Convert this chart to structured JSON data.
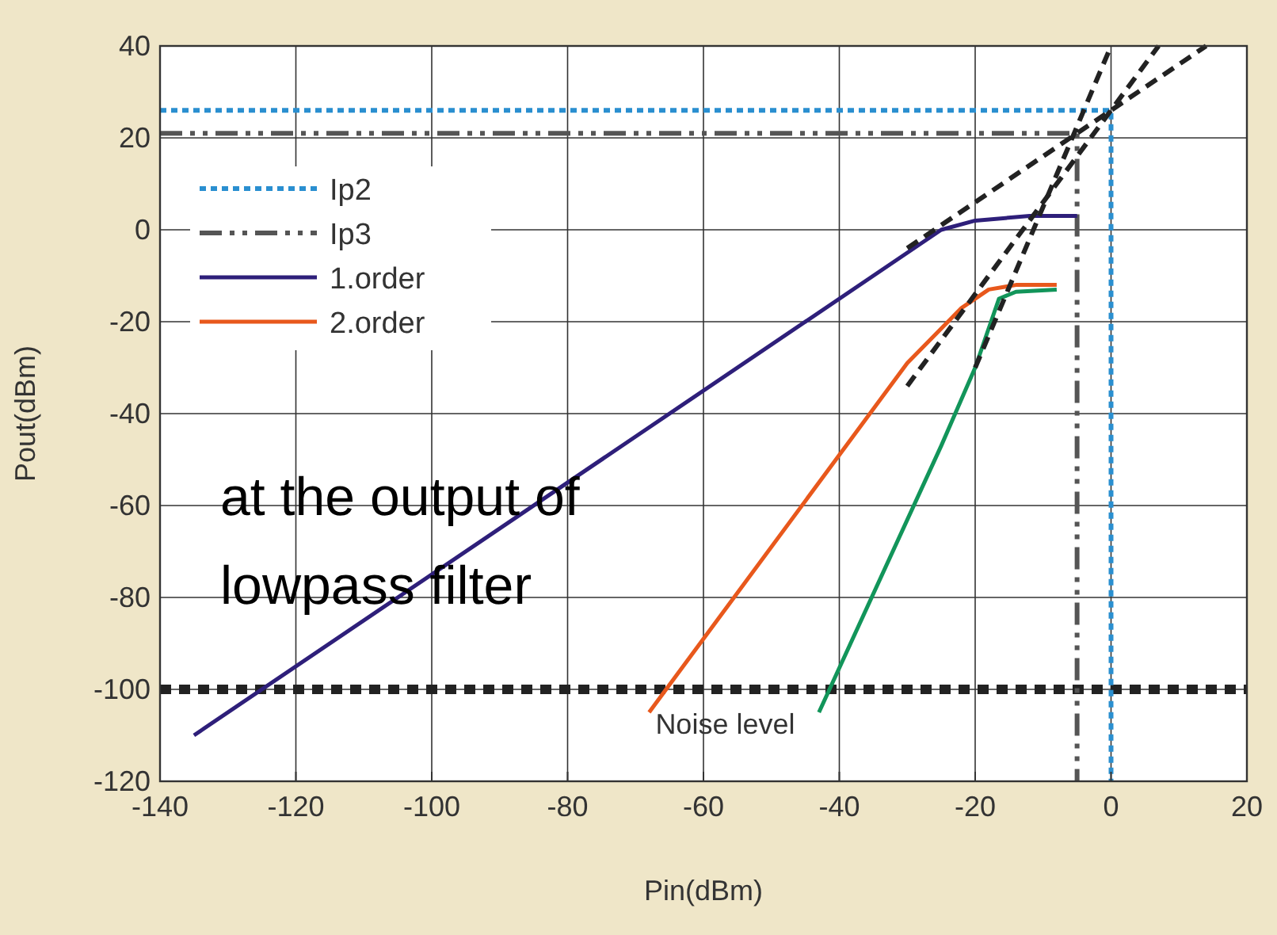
{
  "chart_data": {
    "type": "line",
    "xlabel": "Pin(dBm)",
    "ylabel": "Pout(dBm)",
    "xlim": [
      -140,
      20
    ],
    "ylim": [
      -120,
      40
    ],
    "xticks": [
      -140,
      -120,
      -100,
      -80,
      -60,
      -40,
      -20,
      0,
      20
    ],
    "yticks": [
      -120,
      -100,
      -80,
      -60,
      -40,
      -20,
      0,
      20,
      40
    ],
    "grid": true,
    "legend": "top left",
    "series": [
      {
        "name": "Ip2",
        "color": "#2a8fd0",
        "line_style": "dotted",
        "x": [
          -140,
          0,
          0
        ],
        "values": [
          26,
          26,
          -120
        ]
      },
      {
        "name": "Ip3",
        "color": "#555555",
        "line_style": "dashdot",
        "x": [
          -140,
          -5,
          -5
        ],
        "values": [
          21,
          21,
          -120
        ]
      },
      {
        "name": "1.order",
        "color": "#2e1f7a",
        "x": [
          -135,
          -70,
          -30,
          -25,
          -20,
          -12,
          -5
        ],
        "values": [
          -110,
          -45,
          -5,
          0,
          2,
          3,
          3
        ]
      },
      {
        "name": "2.order",
        "color": "#e8581c",
        "x": [
          -68,
          -30,
          -22,
          -18,
          -14,
          -8
        ],
        "values": [
          -105,
          -29,
          -17,
          -13,
          -12,
          -12
        ]
      },
      {
        "color": "#12955a",
        "x": [
          -43,
          -25,
          -20,
          -16.5,
          -14,
          -8
        ],
        "values": [
          -105,
          -47,
          -30,
          -15,
          -13.5,
          -13
        ]
      },
      {
        "color": "#222222",
        "line_style": "dashed",
        "x": [
          -30,
          14
        ],
        "values": [
          -4,
          40
        ]
      },
      {
        "color": "#222222",
        "line_style": "dashed",
        "x": [
          -30,
          7
        ],
        "values": [
          -34,
          40
        ]
      },
      {
        "color": "#222222",
        "line_style": "dashed",
        "x": [
          -20,
          0
        ],
        "values": [
          -30,
          40
        ]
      }
    ],
    "ref_lines": [
      {
        "axis": "y",
        "value": -100,
        "label": "Noise level",
        "color": "#222222",
        "line_style": "dotted"
      }
    ],
    "annotations": [
      "at the output of lowpass filter"
    ]
  }
}
